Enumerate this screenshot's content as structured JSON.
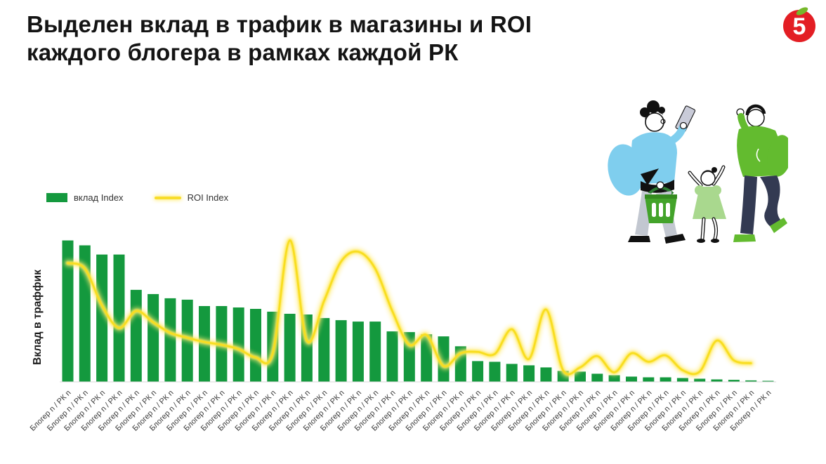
{
  "header": {
    "line1": "Выделен вклад в трафик в магазины и ROI",
    "line2": "каждого блогера в рамках каждой РК"
  },
  "logo": {
    "digit": "5",
    "circle_color": "#E31E24",
    "leaf_color": "#76B82A"
  },
  "legend": {
    "items": [
      {
        "label": "вклад Index",
        "swatch": "bar",
        "color": "#14993E"
      },
      {
        "label": "ROI Index",
        "swatch": "line",
        "color": "#F8DD2A"
      }
    ]
  },
  "chart_data": {
    "type": "bar+line",
    "title": "",
    "xlabel": "",
    "ylabel": "Вклад в траффик",
    "ylim": [
      0,
      105
    ],
    "grid": false,
    "legend_position": "top-left",
    "x_tick_rotation": -45,
    "n_points": 42,
    "categories": [
      "Блогер n / РК n",
      "Блогер n / РК n",
      "Блогер n / РК n",
      "Блогер n / РК n",
      "Блогер n / РК n",
      "Блогер n / РК n",
      "Блогер n / РК n",
      "Блогер n / РК n",
      "Блогер n / РК n",
      "Блогер n / РК n",
      "Блогер n / РК n",
      "Блогер n / РК n",
      "Блогер n / РК n",
      "Блогер n / РК n",
      "Блогер n / РК n",
      "Блогер n / РК n",
      "Блогер n / РК n",
      "Блогер n / РК n",
      "Блогер n / РК n",
      "Блогер n / РК n",
      "Блогер n / РК n",
      "Блогер n / РК n",
      "Блогер n / РК n",
      "Блогер n / РК n",
      "Блогер n / РК n",
      "Блогер n / РК n",
      "Блогер n / РК n",
      "Блогер n / РК n",
      "Блогер n / РК n",
      "Блогер n / РК n",
      "Блогер n / РК n",
      "Блогер n / РК n",
      "Блогер n / РК n",
      "Блогер n / РК n",
      "Блогер n / РК n",
      "Блогер n / РК n",
      "Блогер n / РК n",
      "Блогер n / РК n",
      "Блогер n / РК n",
      "Блогер n / РК n",
      "Блогер n / РК n",
      "Блогер n / РК n"
    ],
    "series": [
      {
        "name": "вклад Index",
        "type": "bar",
        "color": "#14993E",
        "values": [
          100,
          96.5,
          90,
          90,
          65,
          62,
          59,
          58,
          53.5,
          53.5,
          52.5,
          51.5,
          49.5,
          48,
          47.5,
          45,
          43.5,
          42.5,
          42.5,
          35.5,
          35,
          33.5,
          32,
          25,
          14.5,
          14,
          12.5,
          11.5,
          10,
          7.5,
          7,
          5.5,
          4.5,
          3.5,
          3,
          3,
          2.5,
          2,
          1.5,
          1.2,
          0.8,
          0.5
        ]
      },
      {
        "name": "ROI Index",
        "type": "line",
        "color": "#F8DD2A",
        "values": [
          84,
          80,
          54,
          38,
          50,
          42,
          34.5,
          31,
          28,
          26,
          23,
          17,
          20,
          100,
          29,
          57,
          85,
          92,
          80,
          50,
          26,
          33,
          11,
          20,
          21,
          19.5,
          37,
          16,
          51,
          8,
          10,
          18,
          6.5,
          20,
          14,
          18.5,
          8,
          7,
          29,
          15,
          13,
          null
        ]
      }
    ]
  },
  "illustration": {
    "description": "family-with-shopping-basket",
    "colors": {
      "woman_top": "#7FCEEE",
      "woman_pants": "#C2C7D0",
      "basket": "#43A32A",
      "child_dress": "#A9D88E",
      "man_top": "#63BB2F",
      "man_pants": "#333A52"
    }
  }
}
